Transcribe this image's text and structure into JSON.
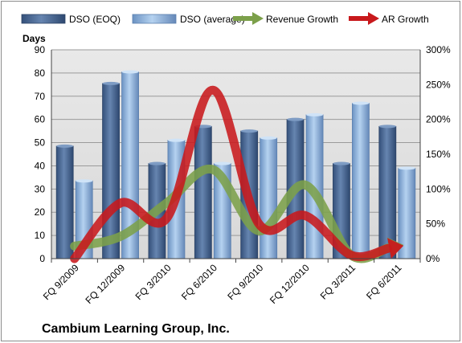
{
  "chart_data": {
    "type": "bar",
    "title": "",
    "footer": "Cambium Learning Group, Inc.",
    "categories": [
      "FQ 9/2009",
      "FQ 12/2009",
      "FQ 3/2010",
      "FQ 6/2010",
      "FQ 9/2010",
      "FQ 12/2010",
      "FQ 3/2011",
      "FQ 6/2011"
    ],
    "ylabel": "Days",
    "ylim": [
      0,
      90
    ],
    "yticks": [
      "0",
      "10",
      "20",
      "30",
      "40",
      "50",
      "60",
      "70",
      "80",
      "90"
    ],
    "y2lim": [
      0,
      3
    ],
    "y2ticks": [
      "0%",
      "50%",
      "100%",
      "150%",
      "200%",
      "250%",
      "300%"
    ],
    "series": [
      {
        "name": "DSO (EOQ)",
        "kind": "bar",
        "axis": "left",
        "color": "#4a6a94",
        "values": [
          48.5,
          75.5,
          41,
          57,
          55,
          60,
          41,
          57
        ]
      },
      {
        "name": "DSO (average)",
        "kind": "bar",
        "axis": "left",
        "color": "#8fb3dc",
        "values": [
          33.5,
          80.5,
          51,
          41,
          52,
          62,
          67,
          39
        ]
      },
      {
        "name": "Revenue Growth",
        "kind": "line",
        "axis": "right",
        "color": "#7ca04a",
        "values": [
          0.18,
          0.32,
          0.8,
          1.28,
          0.4,
          1.06,
          0.05,
          0.18
        ]
      },
      {
        "name": "AR Growth",
        "kind": "line",
        "axis": "right",
        "color": "#c8191c",
        "values": [
          0.0,
          0.8,
          0.58,
          2.42,
          0.5,
          0.62,
          0.05,
          0.17
        ]
      }
    ],
    "grid": true,
    "legend": "top"
  }
}
